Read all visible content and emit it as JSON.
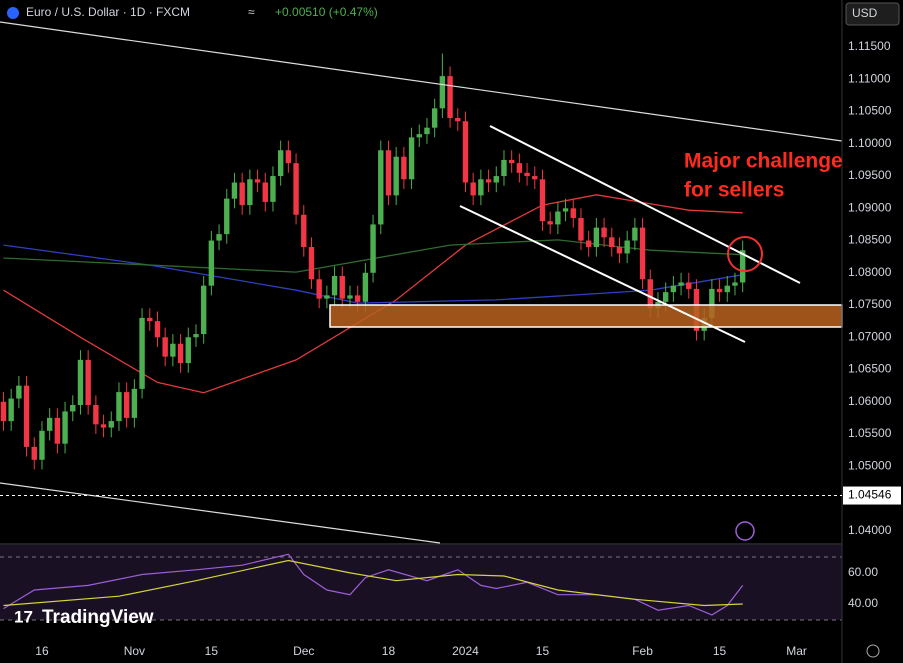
{
  "header": {
    "symbol": "Euro / U.S. Dollar · 1D · FXCM",
    "change": "+0.00510 (+0.47%)",
    "currency": "USD",
    "logo": "TradingView"
  },
  "chart_data": [
    {
      "type": "candlestick",
      "up_color": "#4caf50",
      "down_color": "#f23645",
      "x": [
        -5,
        -4,
        -3,
        -2,
        -1,
        0,
        1,
        2,
        3,
        4,
        5,
        6,
        7,
        8,
        9,
        10,
        11,
        12,
        13,
        14,
        15,
        16,
        17,
        18,
        19,
        20,
        21,
        22,
        23,
        24,
        25,
        26,
        27,
        28,
        29,
        30,
        31,
        32,
        33,
        34,
        35,
        36,
        37,
        38,
        39,
        40,
        41,
        42,
        43,
        44,
        45,
        46,
        47,
        48,
        49,
        50,
        51,
        52,
        53,
        54,
        55,
        56,
        57,
        58,
        59,
        60,
        61,
        62,
        63,
        64,
        65,
        66,
        67,
        68,
        69,
        70,
        71,
        72,
        73,
        74,
        75,
        76,
        77,
        78,
        79,
        80,
        81,
        82,
        83,
        84,
        85,
        86,
        87,
        88,
        89,
        90,
        91
      ],
      "open": [
        1.06,
        1.057,
        1.0605,
        1.0625,
        1.053,
        1.051,
        1.0555,
        1.0575,
        1.0535,
        1.0585,
        1.0595,
        1.0665,
        1.0595,
        1.0565,
        1.056,
        1.057,
        1.0615,
        1.0575,
        1.062,
        1.073,
        1.0725,
        1.07,
        1.067,
        1.069,
        1.066,
        1.07,
        1.0705,
        1.078,
        1.085,
        1.086,
        1.0915,
        1.094,
        1.0905,
        1.0945,
        1.094,
        1.091,
        1.095,
        1.099,
        1.097,
        1.089,
        1.084,
        1.079,
        1.076,
        1.0765,
        1.0795,
        1.076,
        1.0765,
        1.0755,
        1.08,
        1.0875,
        1.099,
        1.092,
        1.098,
        1.0945,
        1.101,
        1.1015,
        1.1025,
        1.1055,
        1.1105,
        1.104,
        1.1035,
        1.094,
        1.092,
        1.0945,
        1.094,
        1.095,
        1.0975,
        1.097,
        1.0955,
        1.095,
        1.0945,
        1.088,
        1.0875,
        1.0895,
        1.09,
        1.0885,
        1.085,
        1.084,
        1.087,
        1.0855,
        1.084,
        1.083,
        1.085,
        1.087,
        1.079,
        1.0745,
        1.0755,
        1.077,
        1.078,
        1.0785,
        1.0775,
        1.071,
        1.073,
        1.0775,
        1.077,
        1.078,
        1.0785
      ],
      "high": [
        1.0615,
        1.062,
        1.064,
        1.064,
        1.0545,
        1.057,
        1.059,
        1.059,
        1.06,
        1.061,
        1.068,
        1.068,
        1.061,
        1.058,
        1.0585,
        1.063,
        1.063,
        1.0635,
        1.0745,
        1.0745,
        1.074,
        1.0715,
        1.0705,
        1.0705,
        1.0715,
        1.072,
        1.0795,
        1.0865,
        1.0875,
        1.093,
        1.0955,
        1.0955,
        1.096,
        1.096,
        1.0955,
        1.0965,
        1.1005,
        1.1005,
        1.0985,
        1.0905,
        1.0855,
        1.0805,
        1.078,
        1.081,
        1.081,
        1.078,
        1.078,
        1.0815,
        1.089,
        1.1005,
        1.1005,
        1.0995,
        1.0995,
        1.1025,
        1.103,
        1.104,
        1.107,
        1.114,
        1.112,
        1.1055,
        1.105,
        1.0955,
        1.096,
        1.096,
        1.0965,
        1.099,
        1.099,
        1.0985,
        1.097,
        1.0965,
        1.096,
        1.0895,
        1.091,
        1.0915,
        1.0915,
        1.09,
        1.0865,
        1.0885,
        1.0885,
        1.087,
        1.0855,
        1.0865,
        1.0885,
        1.0885,
        1.0805,
        1.077,
        1.0785,
        1.0795,
        1.08,
        1.08,
        1.079,
        1.0745,
        1.079,
        1.079,
        1.0795,
        1.08,
        1.085
      ],
      "low": [
        1.0555,
        1.0555,
        1.059,
        1.0515,
        1.0495,
        1.0495,
        1.054,
        1.052,
        1.052,
        1.057,
        1.058,
        1.058,
        1.055,
        1.0545,
        1.0545,
        1.0555,
        1.056,
        1.056,
        1.0605,
        1.071,
        1.0685,
        1.0655,
        1.0655,
        1.0645,
        1.0645,
        1.0685,
        1.069,
        1.0765,
        1.0835,
        1.0845,
        1.09,
        1.089,
        1.089,
        1.0925,
        1.0895,
        1.0895,
        1.0935,
        1.0955,
        1.0875,
        1.0825,
        1.0775,
        1.0745,
        1.0745,
        1.075,
        1.0745,
        1.0745,
        1.074,
        1.074,
        1.0785,
        1.086,
        1.0905,
        1.0905,
        1.093,
        1.093,
        1.0995,
        1.1,
        1.101,
        1.104,
        1.1025,
        1.102,
        1.0925,
        1.0905,
        1.0905,
        1.0925,
        1.0925,
        1.0935,
        1.0955,
        1.094,
        1.0935,
        1.093,
        1.0865,
        1.086,
        1.086,
        1.088,
        1.087,
        1.0835,
        1.0825,
        1.0825,
        1.084,
        1.0825,
        1.0815,
        1.0815,
        1.0835,
        1.0775,
        1.073,
        1.073,
        1.074,
        1.0755,
        1.0765,
        1.076,
        1.0695,
        1.0695,
        1.0715,
        1.0755,
        1.0755,
        1.0765,
        1.077
      ],
      "close": [
        1.057,
        1.0605,
        1.0625,
        1.053,
        1.051,
        1.0555,
        1.0575,
        1.0535,
        1.0585,
        1.0595,
        1.0665,
        1.0595,
        1.0565,
        1.056,
        1.057,
        1.0615,
        1.0575,
        1.062,
        1.073,
        1.0725,
        1.07,
        1.067,
        1.069,
        1.066,
        1.07,
        1.0705,
        1.078,
        1.085,
        1.086,
        1.0915,
        1.094,
        1.0905,
        1.0945,
        1.094,
        1.091,
        1.095,
        1.099,
        1.097,
        1.089,
        1.084,
        1.079,
        1.076,
        1.0765,
        1.0795,
        1.076,
        1.0765,
        1.0755,
        1.08,
        1.0875,
        1.099,
        1.092,
        1.098,
        1.0945,
        1.101,
        1.1015,
        1.1025,
        1.1055,
        1.1105,
        1.104,
        1.1035,
        1.094,
        1.092,
        1.0945,
        1.094,
        1.095,
        1.0975,
        1.097,
        1.0955,
        1.095,
        1.0945,
        1.088,
        1.0875,
        1.0895,
        1.09,
        1.0885,
        1.085,
        1.084,
        1.087,
        1.0855,
        1.084,
        1.083,
        1.085,
        1.087,
        1.079,
        1.0745,
        1.0755,
        1.077,
        1.078,
        1.0785,
        1.0775,
        1.071,
        1.073,
        1.0775,
        1.077,
        1.078,
        1.0785,
        1.0835
      ],
      "lines": [
        {
          "color": "#e03a3a",
          "x": [
            -5,
            5,
            15,
            21,
            33,
            46,
            55,
            65,
            72,
            84,
            91
          ],
          "values": [
            1.0773,
            1.07,
            1.063,
            1.0614,
            1.0665,
            1.0758,
            1.0843,
            1.0905,
            1.0921,
            1.0897,
            1.0893
          ]
        },
        {
          "color": "#2f3fc0",
          "x": [
            -5,
            14,
            33,
            41,
            59,
            79,
            91
          ],
          "values": [
            1.0843,
            1.0812,
            1.0773,
            1.0753,
            1.0758,
            1.0773,
            1.0797
          ]
        },
        {
          "color": "#2f6b2f",
          "x": [
            -5,
            33,
            53,
            67,
            79,
            91
          ],
          "values": [
            1.0823,
            1.0801,
            1.0843,
            1.0851,
            1.0835,
            1.0828
          ]
        }
      ],
      "xlim": [
        -5.45,
        103.9
      ],
      "ylim": [
        1.0381,
        1.1223
      ],
      "yticks": [
        {
          "value": 1.115,
          "label": "1.11500"
        },
        {
          "value": 1.11,
          "label": "1.11000"
        },
        {
          "value": 1.105,
          "label": "1.10500"
        },
        {
          "value": 1.1,
          "label": "1.10000"
        },
        {
          "value": 1.095,
          "label": "1.09500"
        },
        {
          "value": 1.09,
          "label": "1.09000"
        },
        {
          "value": 1.085,
          "label": "1.08500"
        },
        {
          "value": 1.08,
          "label": "1.08000"
        },
        {
          "value": 1.075,
          "label": "1.07500"
        },
        {
          "value": 1.07,
          "label": "1.07000"
        },
        {
          "value": 1.065,
          "label": "1.06500"
        },
        {
          "value": 1.06,
          "label": "1.06000"
        },
        {
          "value": 1.055,
          "label": "1.05500"
        },
        {
          "value": 1.05,
          "label": "1.05000"
        },
        {
          "value": 1.04,
          "label": "1.04000"
        }
      ],
      "xticks": [
        {
          "value": 0,
          "label": "16"
        },
        {
          "value": 12,
          "label": "Nov"
        },
        {
          "value": 22,
          "label": "15"
        },
        {
          "value": 34,
          "label": "Dec"
        },
        {
          "value": 45,
          "label": "18"
        },
        {
          "value": 55,
          "label": "2024"
        },
        {
          "value": 65,
          "label": "15"
        },
        {
          "value": 78,
          "label": "Feb"
        },
        {
          "value": 88,
          "label": "15"
        },
        {
          "value": 98,
          "label": "Mar"
        }
      ],
      "price_line": {
        "value": 1.04546,
        "label": "1.04546"
      },
      "annotation": [
        "Major challenge",
        "for sellers"
      ]
    },
    {
      "type": "line",
      "xlim": [
        -5.45,
        103.9
      ],
      "ylim": [
        16.8,
        78
      ],
      "yticks": [
        {
          "value": 60,
          "label": "60.00"
        },
        {
          "value": 40,
          "label": "40.00"
        }
      ],
      "series": [
        {
          "color": "#9c5fd6",
          "x": [
            -5,
            -1,
            6,
            13,
            20,
            26,
            32,
            34,
            37,
            40,
            42,
            45,
            50,
            54,
            57,
            59,
            63,
            67,
            72,
            77,
            80,
            84,
            87,
            89,
            91
          ],
          "values": [
            37,
            49,
            52,
            59,
            62,
            65,
            72,
            59,
            49,
            46,
            57,
            62,
            55,
            62,
            52,
            50,
            54,
            46,
            46,
            43,
            36,
            39,
            33,
            39,
            52
          ]
        },
        {
          "color": "#d4d43a",
          "x": [
            -5,
            10,
            20,
            32,
            40,
            46,
            54,
            60,
            67,
            77,
            86,
            91
          ],
          "values": [
            39,
            45,
            55,
            68,
            60,
            55,
            59,
            58,
            49,
            43,
            39,
            40
          ]
        }
      ]
    }
  ]
}
